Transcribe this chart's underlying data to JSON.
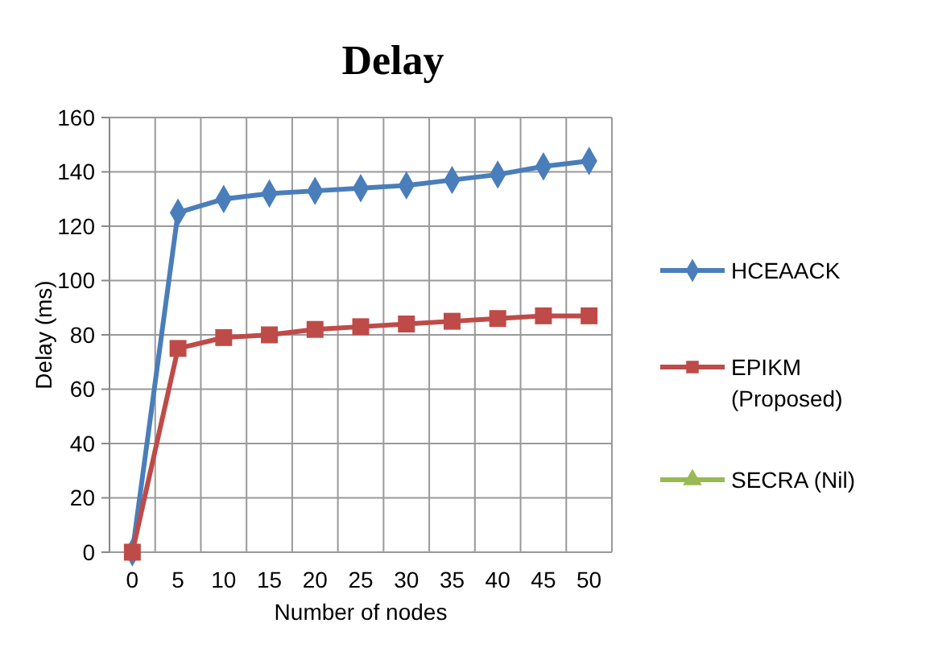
{
  "chart_data": {
    "type": "line",
    "title": "Delay",
    "xlabel": "Number of nodes",
    "ylabel": "Delay (ms)",
    "categories": [
      "0",
      "5",
      "10",
      "15",
      "20",
      "25",
      "30",
      "35",
      "40",
      "45",
      "50"
    ],
    "series": [
      {
        "name": "HCEAACK",
        "color": "#4a7ebb",
        "marker": "diamond",
        "values": [
          0,
          125,
          130,
          132,
          133,
          134,
          135,
          137,
          139,
          142,
          144
        ]
      },
      {
        "name": "EPIKM (Proposed)",
        "color": "#be4b48",
        "marker": "square",
        "values": [
          0,
          75,
          79,
          80,
          82,
          83,
          84,
          85,
          86,
          87,
          87
        ]
      },
      {
        "name": "SECRA (Nil)",
        "color": "#98b954",
        "marker": "triangle",
        "values": [
          null,
          null,
          null,
          null,
          null,
          null,
          null,
          null,
          null,
          null,
          null
        ]
      }
    ],
    "ylim": [
      0,
      160
    ],
    "yticks": [
      0,
      20,
      40,
      60,
      80,
      100,
      120,
      140,
      160
    ],
    "grid": true,
    "legend": "right",
    "line_style": "solid"
  }
}
